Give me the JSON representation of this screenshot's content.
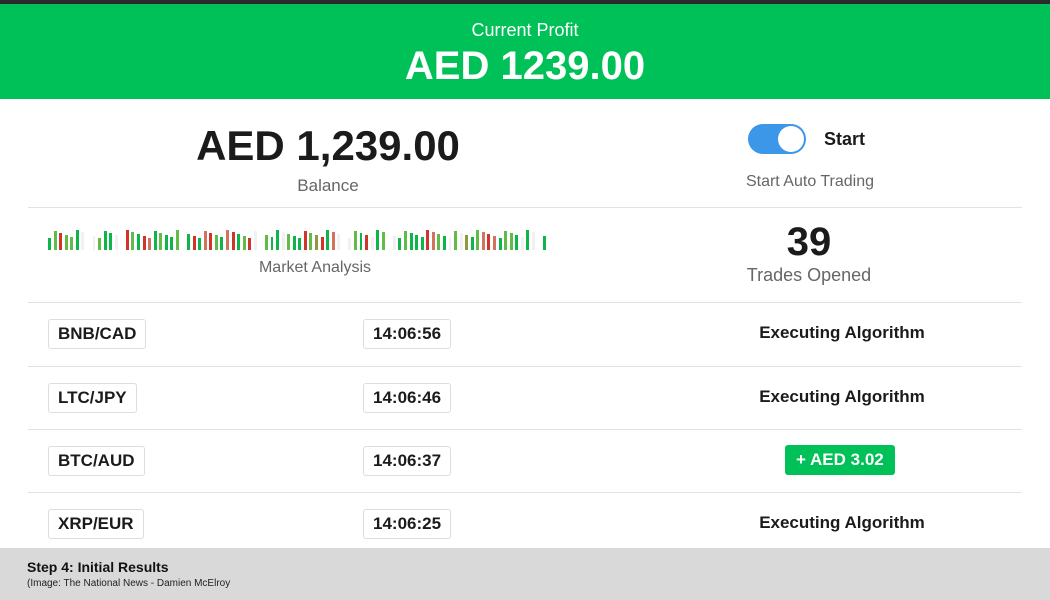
{
  "header": {
    "label": "Current Profit",
    "value": "AED 1239.00"
  },
  "balance": {
    "amount": "AED 1,239.00",
    "label": "Balance"
  },
  "auto_trading": {
    "toggle_label": "Start",
    "caption": "Start Auto Trading",
    "enabled": true
  },
  "market_analysis": {
    "label": "Market Analysis",
    "bars": "glrllgw wlggw rlgrsglggl grgsrlgsrglrw lggwlggrlorgsw wlgrwgl wglgggrslgwlwoglsrsgllgwgw g",
    "colors": {
      "g": "#0db54a",
      "l": "#62bb46",
      "r": "#d0342c",
      "s": "#d2735f",
      "o": "#8f9a3b",
      "w": "#f1f1f1"
    }
  },
  "trades": {
    "count": "39",
    "label": "Trades Opened"
  },
  "rows": [
    {
      "pair": "BNB/CAD",
      "time": "14:06:56",
      "status": "Executing Algorithm"
    },
    {
      "pair": "LTC/JPY",
      "time": "14:06:46",
      "status": "Executing Algorithm"
    },
    {
      "pair": "BTC/AUD",
      "time": "14:06:37",
      "profit": "+ AED 3.02"
    },
    {
      "pair": "XRP/EUR",
      "time": "14:06:25",
      "status": "Executing Algorithm"
    }
  ],
  "footer": {
    "title": "Step 4: Initial Results",
    "subtitle": "(Image:  The National News - Damien McElroy"
  }
}
